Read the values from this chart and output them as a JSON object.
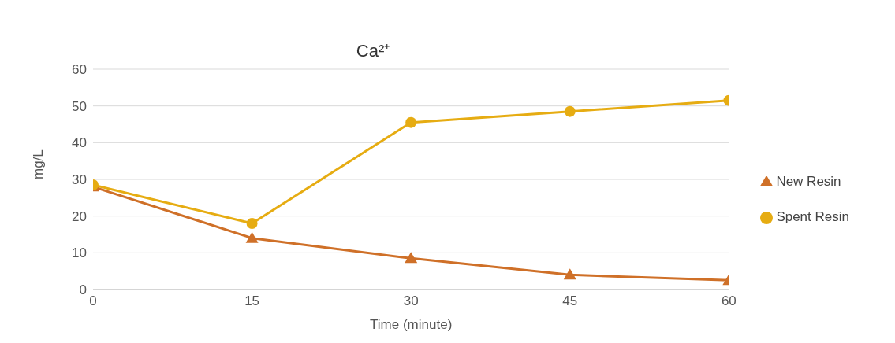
{
  "chart_data": {
    "type": "line",
    "title": "Ca²⁺",
    "xlabel": "Time (minute)",
    "ylabel": "mg/L",
    "x": [
      0,
      15,
      30,
      45,
      60
    ],
    "series": [
      {
        "name": "New Resin",
        "color": "#cf7028",
        "marker": "triangle",
        "values": [
          28,
          14,
          8.5,
          4,
          2.5
        ]
      },
      {
        "name": "Spent Resin",
        "color": "#e6ac12",
        "marker": "circle",
        "values": [
          28.5,
          18,
          45.5,
          48.5,
          51.5
        ]
      }
    ],
    "xlim": [
      0,
      60
    ],
    "xticks": [
      0,
      15,
      30,
      45,
      60
    ],
    "ylim": [
      0,
      60
    ],
    "yticks": [
      0,
      10,
      20,
      30,
      40,
      50,
      60
    ],
    "grid": "y",
    "legend": "right",
    "line_style": "solid"
  }
}
